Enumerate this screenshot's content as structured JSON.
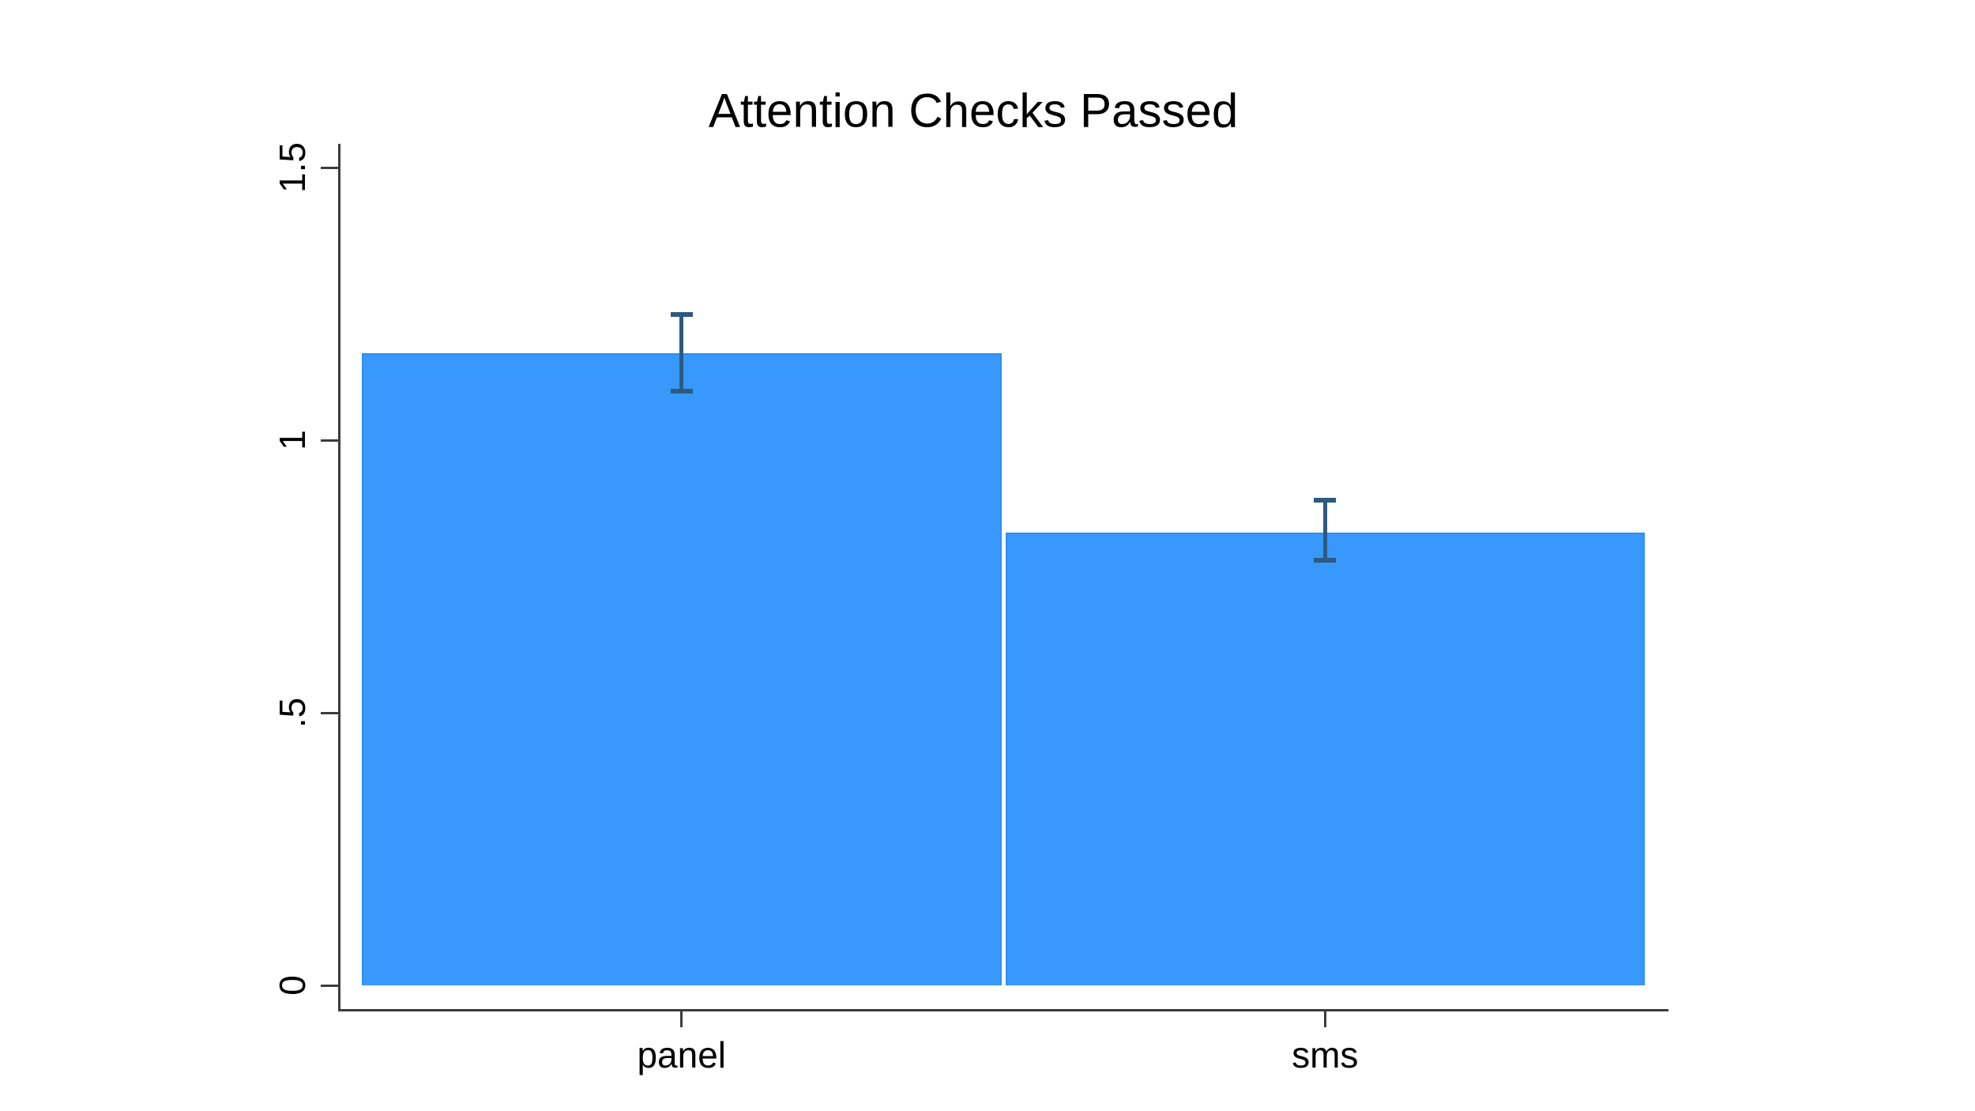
{
  "chart_data": {
    "type": "bar",
    "title": "Attention Checks Passed",
    "categories": [
      "panel",
      "sms"
    ],
    "values": [
      1.16,
      0.83
    ],
    "error_bars": {
      "ci_low": [
        1.09,
        0.78
      ],
      "ci_high": [
        1.23,
        0.89
      ]
    },
    "xlabel": "",
    "ylabel": "",
    "ylim": [
      0,
      1.5
    ],
    "yticks": [
      {
        "v": 0,
        "label": "0"
      },
      {
        "v": 0.5,
        "label": ".5"
      },
      {
        "v": 1,
        "label": "1"
      },
      {
        "v": 1.5,
        "label": "1.5"
      }
    ],
    "grid": false,
    "legend_position": "none",
    "colors": {
      "bar_fill": "#3898fc",
      "bar_edge": "#2d8ef5",
      "error_bar": "#2e5a80",
      "axis": "#3c3c3c",
      "text": "#000000",
      "background": "#ffffff"
    }
  }
}
